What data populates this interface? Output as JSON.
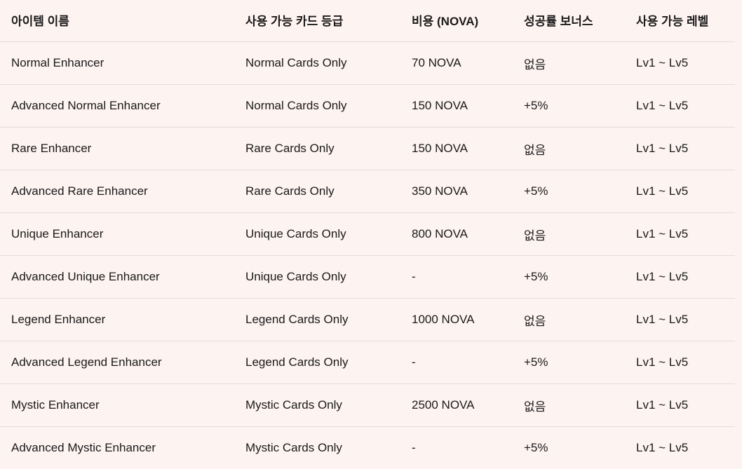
{
  "headers": [
    "아이템 이름",
    "사용 가능 카드 등급",
    "비용 (NOVA)",
    "성공률 보너스",
    "사용 가능 레벨"
  ],
  "rows": [
    [
      "Normal Enhancer",
      "Normal Cards Only",
      "70 NOVA",
      "없음",
      "Lv1 ~ Lv5"
    ],
    [
      "Advanced Normal Enhancer",
      "Normal Cards Only",
      "150 NOVA",
      "+5%",
      "Lv1 ~ Lv5"
    ],
    [
      "Rare Enhancer",
      "Rare Cards Only",
      "150 NOVA",
      "없음",
      "Lv1 ~ Lv5"
    ],
    [
      "Advanced Rare Enhancer",
      "Rare Cards Only",
      "350 NOVA",
      "+5%",
      "Lv1 ~ Lv5"
    ],
    [
      "Unique Enhancer",
      "Unique Cards Only",
      "800 NOVA",
      "없음",
      "Lv1 ~ Lv5"
    ],
    [
      "Advanced Unique Enhancer",
      "Unique Cards Only",
      "-",
      "+5%",
      "Lv1 ~ Lv5"
    ],
    [
      "Legend Enhancer",
      "Legend Cards Only",
      "1000 NOVA",
      "없음",
      "Lv1 ~ Lv5"
    ],
    [
      "Advanced Legend Enhancer",
      "Legend Cards Only",
      "-",
      "+5%",
      "Lv1 ~ Lv5"
    ],
    [
      "Mystic Enhancer",
      "Mystic Cards Only",
      "2500 NOVA",
      "없음",
      "Lv1 ~ Lv5"
    ],
    [
      "Advanced Mystic Enhancer",
      "Mystic Cards Only",
      "-",
      "+5%",
      "Lv1 ~ Lv5"
    ]
  ]
}
